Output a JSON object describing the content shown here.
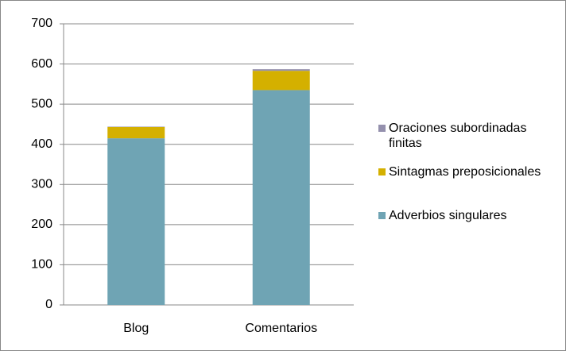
{
  "chart_data": {
    "type": "bar",
    "stacked": true,
    "categories": [
      "Blog",
      "Comentarios"
    ],
    "series": [
      {
        "name": "Adverbios singulares",
        "color": "#6fa4b4",
        "values": [
          415,
          535
        ]
      },
      {
        "name": "Sintagmas preposicionales",
        "color": "#d4b000",
        "values": [
          28,
          48
        ]
      },
      {
        "name": "Oraciones subordinadas finitas",
        "color": "#9490ad",
        "values": [
          1,
          4
        ]
      }
    ],
    "ylim": [
      0,
      700
    ],
    "yticks": [
      0,
      100,
      200,
      300,
      400,
      500,
      600,
      700
    ],
    "grid": true,
    "legend": "right"
  }
}
